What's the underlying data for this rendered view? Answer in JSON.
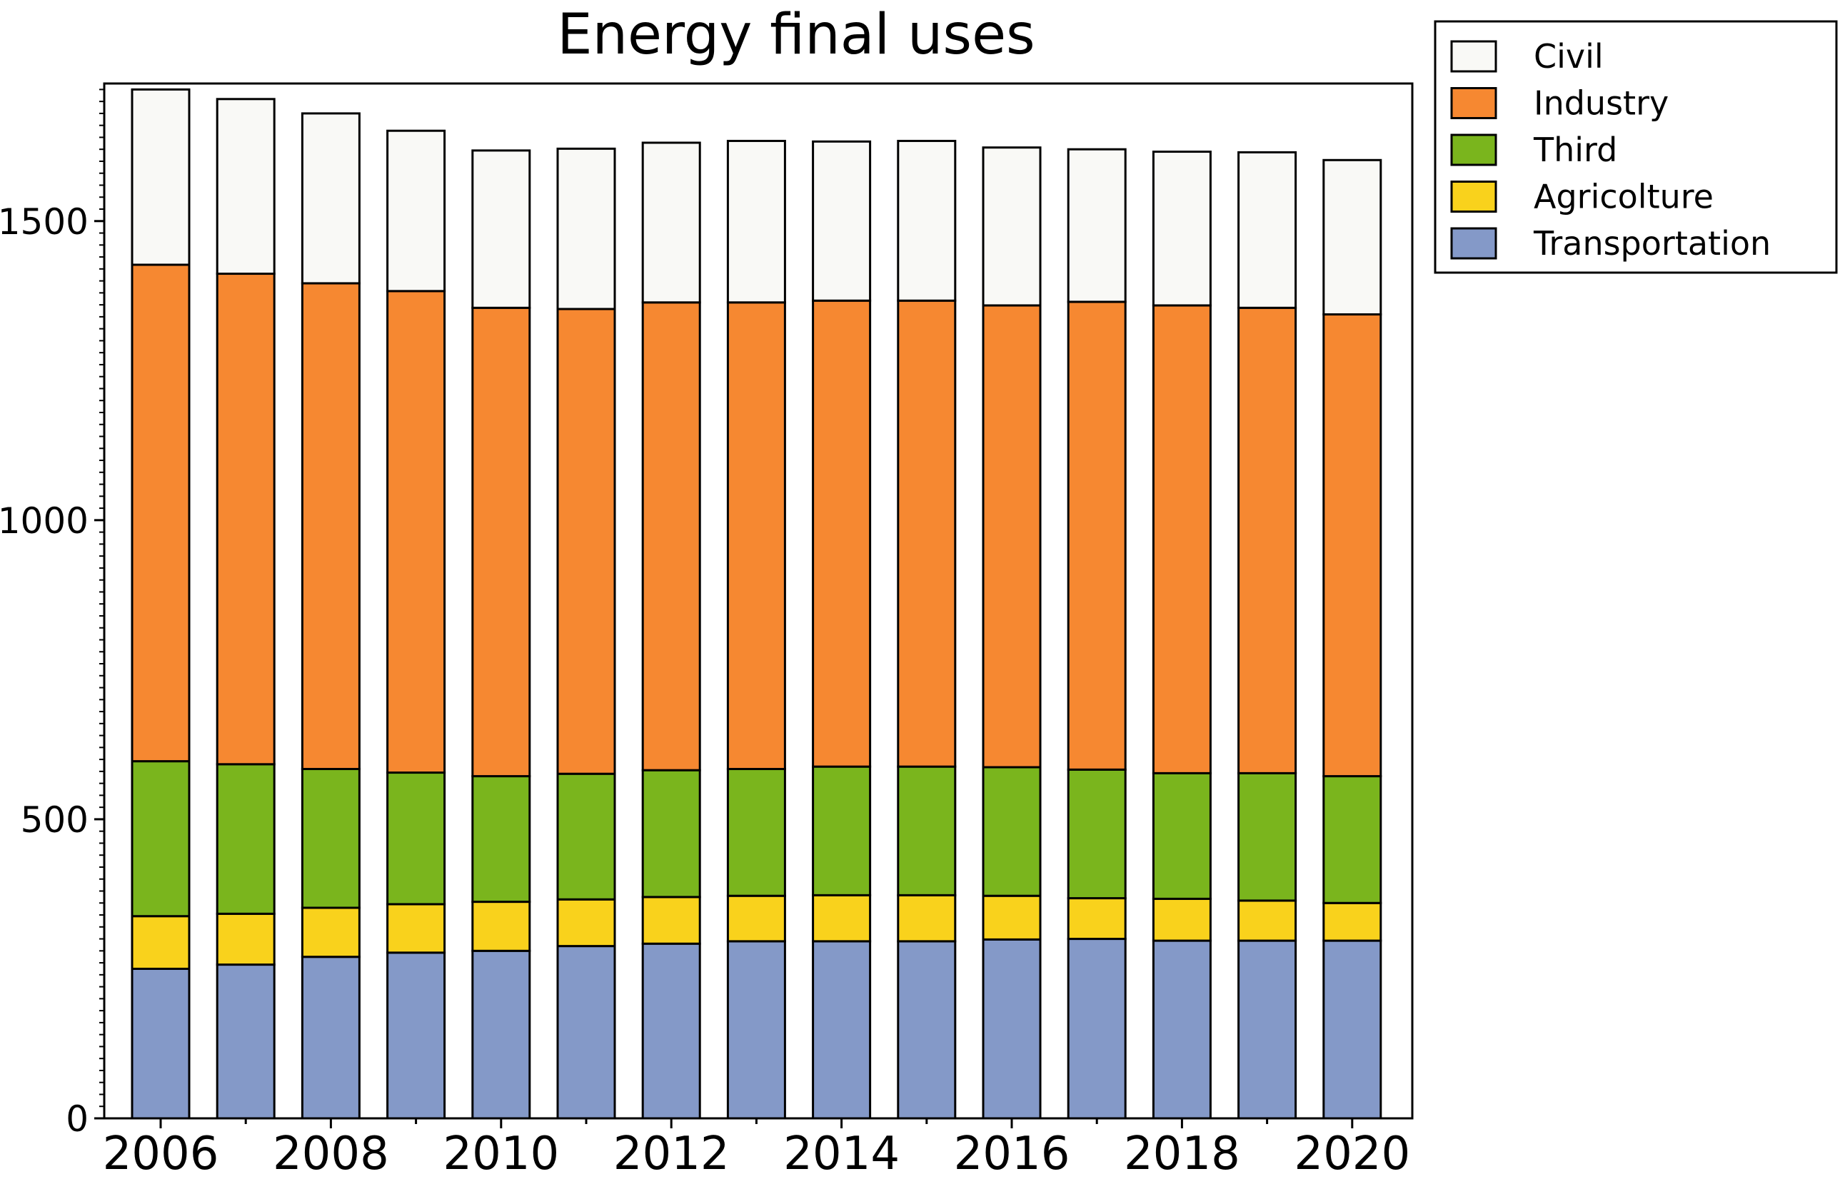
{
  "chart_data": {
    "type": "bar",
    "stacked": true,
    "title": "Energy final uses",
    "xlabel": "",
    "ylabel": "",
    "categories": [
      "2006",
      "2007",
      "2008",
      "2009",
      "2010",
      "2011",
      "2012",
      "2013",
      "2014",
      "2015",
      "2016",
      "2017",
      "2018",
      "2019",
      "2020"
    ],
    "x_tick_labels": [
      "2006",
      "2008",
      "2010",
      "2012",
      "2014",
      "2016",
      "2018",
      "2020"
    ],
    "y_ticks": [
      0,
      500,
      1000,
      1500
    ],
    "ylim": [
      0,
      1730
    ],
    "grid": false,
    "legend_position": "top-right outside",
    "series": [
      {
        "name": "Transportation",
        "color": "#8499c8",
        "values": [
          250,
          257,
          270,
          277,
          280,
          288,
          292,
          296,
          296,
          296,
          299,
          300,
          297,
          297,
          297
        ]
      },
      {
        "name": "Agricolture",
        "color": "#f9d21c",
        "values": [
          88,
          85,
          82,
          81,
          82,
          78,
          78,
          76,
          77,
          77,
          73,
          68,
          70,
          67,
          63
        ]
      },
      {
        "name": "Third",
        "color": "#7ab51d",
        "values": [
          259,
          250,
          232,
          220,
          210,
          210,
          212,
          212,
          215,
          215,
          215,
          215,
          210,
          213,
          212
        ]
      },
      {
        "name": "Industry",
        "color": "#f68831",
        "values": [
          830,
          820,
          812,
          805,
          783,
          777,
          782,
          780,
          779,
          779,
          772,
          782,
          782,
          778,
          772
        ]
      },
      {
        "name": "Civil",
        "color": "#f9f9f6",
        "values": [
          293,
          292,
          284,
          268,
          263,
          268,
          267,
          270,
          266,
          267,
          264,
          255,
          257,
          260,
          258
        ]
      }
    ]
  }
}
